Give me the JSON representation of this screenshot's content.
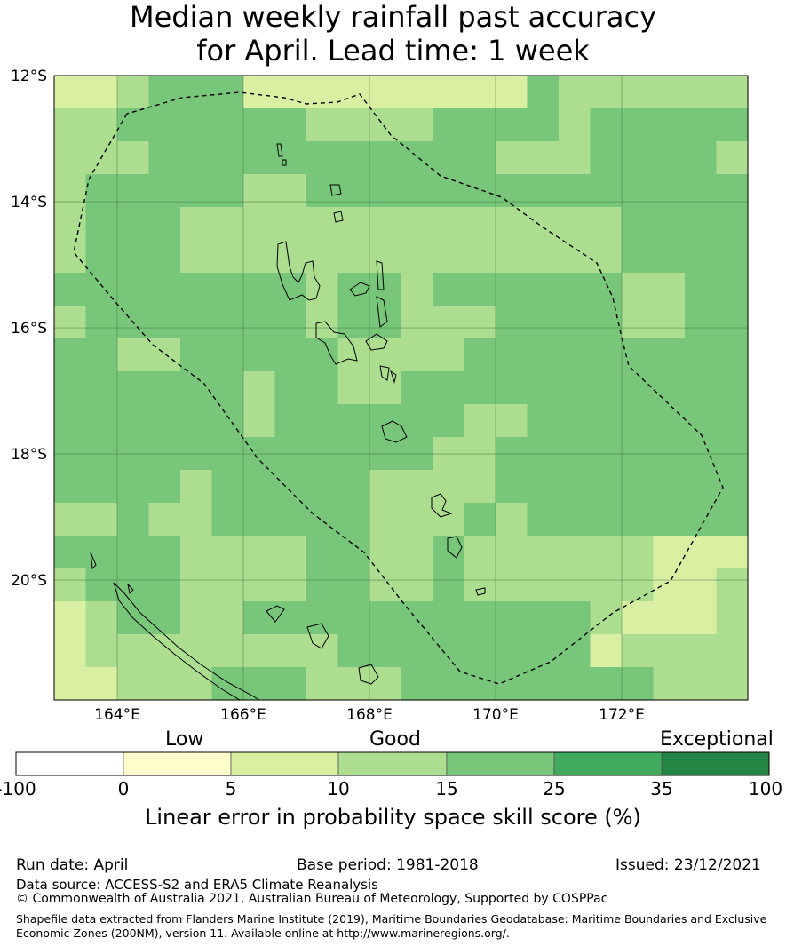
{
  "title_line1": "Median weekly rainfall past accuracy",
  "title_line2": "for April. Lead time: 1 week",
  "map": {
    "lat_ticks": [
      "12°S",
      "14°S",
      "16°S",
      "18°S",
      "20°S"
    ],
    "lon_ticks": [
      "164°E",
      "166°E",
      "168°E",
      "170°E",
      "172°E"
    ],
    "grid_classes": [
      "22222222222222222222222",
      "22222221111122222233233",
      "22333333333333322333333",
      "22233333333333333333332",
      "23333333222233333333333"
    ]
  },
  "colorbar": {
    "categories": [
      "Low",
      "Good",
      "Exceptional"
    ],
    "ticks": [
      "-100",
      "0",
      "5",
      "10",
      "15",
      "25",
      "35",
      "100"
    ],
    "colors": [
      "#ffffff",
      "#ffffcc",
      "#d9f0a3",
      "#addd8e",
      "#78c679",
      "#41ab5d",
      "#238443"
    ],
    "label": "Linear error in probability space skill score (%)"
  },
  "footer": {
    "run_date": "Run date: April",
    "base_period": "Base period: 1981-2018",
    "issued": "Issued: 23/12/2021",
    "data_source": "Data source: ACCESS-S2 and ERA5 Climate Reanalysis",
    "copyright": "© Commonwealth of Australia 2021, Australian Bureau of Meteorology, Supported by COSPPac",
    "shapefile": "Shapefile data extracted from Flanders Marine Institute (2019), Maritime Boundaries Geodatabase: Maritime Boundaries and Exclusive Economic Zones (200NM), version 11. Available online at http://www.marineregions.org/."
  }
}
